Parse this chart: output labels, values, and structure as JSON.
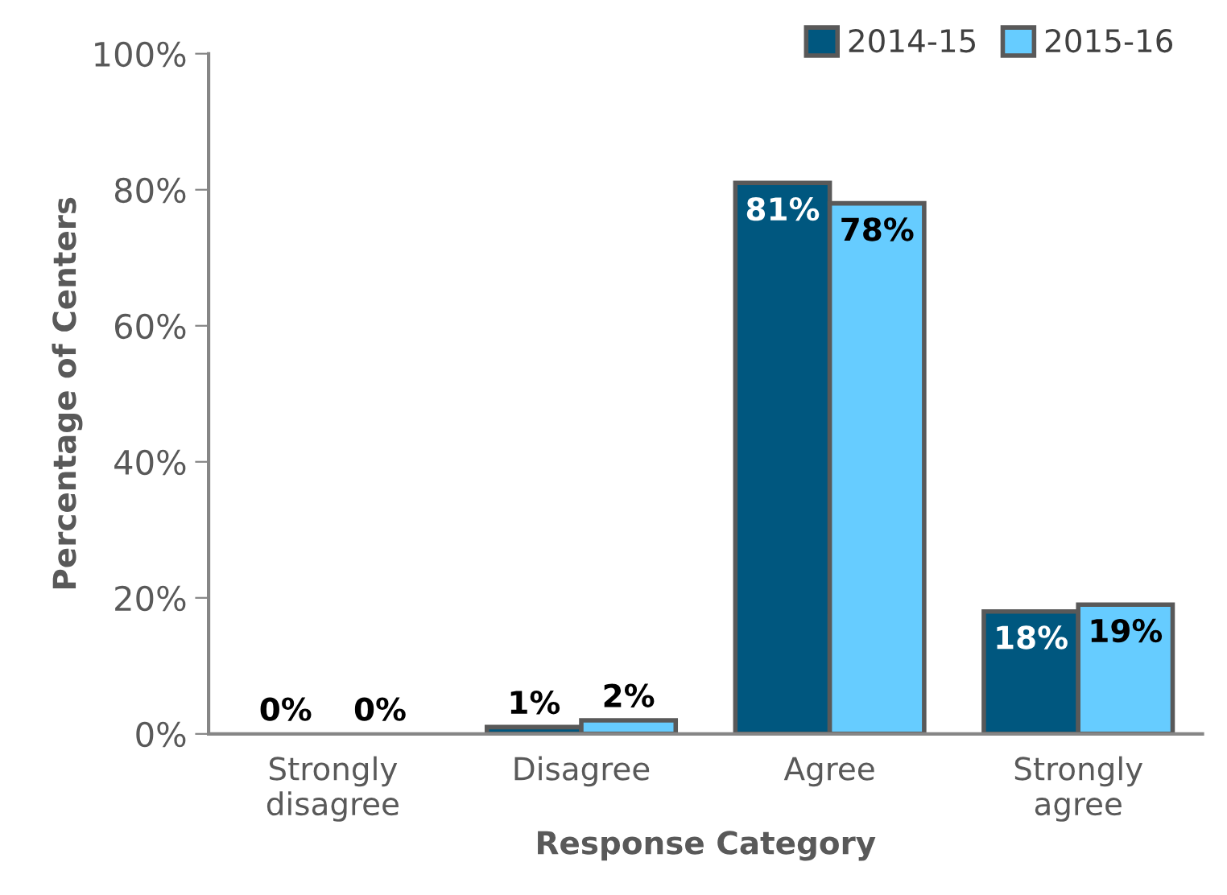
{
  "chart_data": {
    "type": "bar",
    "xlabel": "Response Category",
    "ylabel": "Percentage of Centers",
    "categories": [
      "Strongly\ndisagree",
      "Disagree",
      "Agree",
      "Strongly\nagree"
    ],
    "series": [
      {
        "name": "2014-15",
        "color": "#00577f",
        "values": [
          0,
          1,
          81,
          18
        ],
        "value_labels": [
          "0%",
          "1%",
          "81%",
          "18%"
        ]
      },
      {
        "name": "2015-16",
        "color": "#66ccff",
        "values": [
          0,
          2,
          78,
          19
        ],
        "value_labels": [
          "0%",
          "2%",
          "78%",
          "19%"
        ]
      }
    ],
    "ylim": [
      0,
      100
    ],
    "yticks": [
      {
        "value": 0,
        "label": "0%"
      },
      {
        "value": 20,
        "label": "20%"
      },
      {
        "value": 40,
        "label": "40%"
      },
      {
        "value": 60,
        "label": "60%"
      },
      {
        "value": 80,
        "label": "80%"
      },
      {
        "value": 100,
        "label": "100%"
      }
    ],
    "grid": false,
    "legend": "top right"
  }
}
